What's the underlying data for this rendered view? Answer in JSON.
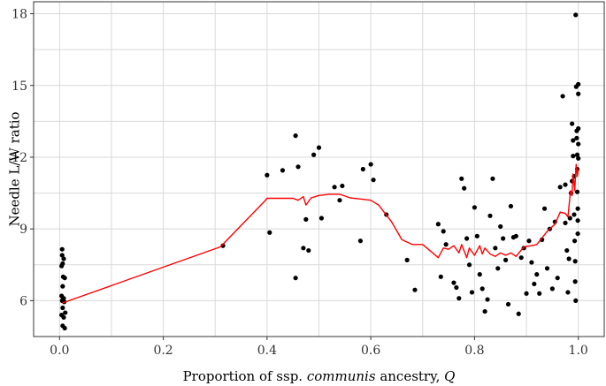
{
  "chart_data": {
    "type": "scatter",
    "title": "",
    "xlabel": {
      "prefix": "Proportion of ssp. ",
      "italic": "communis",
      "middle": " ancestry, ",
      "var": "Q"
    },
    "ylabel": "Needle L/W ratio",
    "xlim": [
      -0.05,
      1.05
    ],
    "ylim": [
      4.5,
      18.5
    ],
    "grid": true,
    "x_ticks": [
      0.0,
      0.2,
      0.4,
      0.6,
      0.8,
      1.0
    ],
    "x_tick_labels": [
      "0.0",
      "0.2",
      "0.4",
      "0.6",
      "0.8",
      "1.0"
    ],
    "y_ticks": [
      6,
      9,
      12,
      15,
      18
    ],
    "y_tick_labels": [
      "6",
      "9",
      "12",
      "15",
      "18"
    ],
    "series": [
      {
        "name": "observations",
        "kind": "scatter",
        "color": "#000000",
        "points": [
          [
            0.005,
            8.15
          ],
          [
            0.005,
            7.9
          ],
          [
            0.008,
            7.75
          ],
          [
            0.006,
            7.55
          ],
          [
            0.004,
            7.45
          ],
          [
            0.007,
            7.0
          ],
          [
            0.01,
            6.95
          ],
          [
            0.006,
            6.6
          ],
          [
            0.004,
            6.2
          ],
          [
            0.008,
            6.1
          ],
          [
            0.005,
            6.0
          ],
          [
            0.009,
            5.95
          ],
          [
            0.006,
            5.7
          ],
          [
            0.011,
            5.5
          ],
          [
            0.004,
            5.4
          ],
          [
            0.008,
            5.3
          ],
          [
            0.006,
            4.95
          ],
          [
            0.01,
            4.85
          ],
          [
            0.315,
            8.3
          ],
          [
            0.4,
            11.25
          ],
          [
            0.405,
            8.85
          ],
          [
            0.43,
            11.45
          ],
          [
            0.455,
            12.9
          ],
          [
            0.46,
            11.6
          ],
          [
            0.455,
            6.95
          ],
          [
            0.47,
            8.2
          ],
          [
            0.48,
            8.1
          ],
          [
            0.475,
            9.4
          ],
          [
            0.49,
            12.1
          ],
          [
            0.5,
            12.4
          ],
          [
            0.505,
            9.45
          ],
          [
            0.53,
            10.75
          ],
          [
            0.54,
            10.2
          ],
          [
            0.545,
            10.8
          ],
          [
            0.58,
            8.5
          ],
          [
            0.585,
            11.5
          ],
          [
            0.6,
            11.7
          ],
          [
            0.605,
            11.05
          ],
          [
            0.63,
            9.6
          ],
          [
            0.67,
            7.7
          ],
          [
            0.685,
            6.45
          ],
          [
            0.73,
            9.2
          ],
          [
            0.74,
            8.9
          ],
          [
            0.735,
            7.0
          ],
          [
            0.745,
            8.35
          ],
          [
            0.76,
            6.75
          ],
          [
            0.765,
            6.55
          ],
          [
            0.77,
            6.1
          ],
          [
            0.775,
            11.1
          ],
          [
            0.78,
            10.7
          ],
          [
            0.785,
            8.6
          ],
          [
            0.79,
            7.5
          ],
          [
            0.795,
            6.35
          ],
          [
            0.8,
            9.9
          ],
          [
            0.805,
            8.7
          ],
          [
            0.81,
            7.1
          ],
          [
            0.815,
            6.5
          ],
          [
            0.82,
            5.55
          ],
          [
            0.825,
            6.05
          ],
          [
            0.83,
            9.55
          ],
          [
            0.835,
            11.1
          ],
          [
            0.84,
            8.2
          ],
          [
            0.845,
            7.35
          ],
          [
            0.85,
            9.1
          ],
          [
            0.855,
            8.6
          ],
          [
            0.86,
            7.7
          ],
          [
            0.865,
            5.85
          ],
          [
            0.87,
            9.95
          ],
          [
            0.875,
            8.65
          ],
          [
            0.88,
            8.7
          ],
          [
            0.885,
            5.45
          ],
          [
            0.89,
            7.8
          ],
          [
            0.895,
            8.2
          ],
          [
            0.9,
            6.3
          ],
          [
            0.905,
            8.5
          ],
          [
            0.91,
            7.6
          ],
          [
            0.915,
            6.7
          ],
          [
            0.92,
            7.1
          ],
          [
            0.925,
            6.3
          ],
          [
            0.93,
            8.55
          ],
          [
            0.935,
            9.85
          ],
          [
            0.94,
            7.35
          ],
          [
            0.945,
            9.0
          ],
          [
            0.95,
            6.5
          ],
          [
            0.955,
            9.3
          ],
          [
            0.96,
            6.95
          ],
          [
            0.965,
            10.75
          ],
          [
            0.97,
            14.55
          ],
          [
            0.975,
            10.85
          ],
          [
            0.975,
            9.25
          ],
          [
            0.978,
            8.1
          ],
          [
            0.98,
            6.35
          ],
          [
            0.982,
            7.75
          ],
          [
            0.984,
            9.45
          ],
          [
            0.986,
            10.5
          ],
          [
            0.988,
            11.0
          ],
          [
            0.988,
            13.4
          ],
          [
            0.99,
            12.7
          ],
          [
            0.99,
            12.05
          ],
          [
            0.992,
            11.2
          ],
          [
            0.992,
            9.6
          ],
          [
            0.993,
            8.5
          ],
          [
            0.994,
            7.65
          ],
          [
            0.994,
            6.8
          ],
          [
            0.995,
            6.0
          ],
          [
            0.995,
            17.95
          ],
          [
            0.996,
            14.95
          ],
          [
            0.997,
            13.1
          ],
          [
            0.997,
            12.8
          ],
          [
            0.998,
            12.1
          ],
          [
            0.998,
            11.5
          ],
          [
            0.998,
            10.55
          ],
          [
            0.999,
            9.85
          ],
          [
            0.999,
            9.35
          ],
          [
            0.999,
            8.8
          ],
          [
            1.0,
            15.05
          ],
          [
            1.0,
            14.65
          ],
          [
            1.0,
            13.2
          ],
          [
            1.0,
            12.55
          ],
          [
            1.0,
            11.95
          ]
        ]
      },
      {
        "name": "smoothed trend",
        "kind": "line",
        "color": "#ff0000",
        "points": [
          [
            0.005,
            5.9
          ],
          [
            0.31,
            8.25
          ],
          [
            0.395,
            10.15
          ],
          [
            0.4,
            10.28
          ],
          [
            0.45,
            10.28
          ],
          [
            0.46,
            10.2
          ],
          [
            0.47,
            10.35
          ],
          [
            0.475,
            10.0
          ],
          [
            0.485,
            10.3
          ],
          [
            0.5,
            10.4
          ],
          [
            0.52,
            10.45
          ],
          [
            0.54,
            10.45
          ],
          [
            0.56,
            10.3
          ],
          [
            0.58,
            10.25
          ],
          [
            0.6,
            10.2
          ],
          [
            0.615,
            10.0
          ],
          [
            0.64,
            9.3
          ],
          [
            0.66,
            8.55
          ],
          [
            0.68,
            8.35
          ],
          [
            0.7,
            8.35
          ],
          [
            0.73,
            7.8
          ],
          [
            0.74,
            8.2
          ],
          [
            0.75,
            8.15
          ],
          [
            0.76,
            8.3
          ],
          [
            0.77,
            8.0
          ],
          [
            0.775,
            8.35
          ],
          [
            0.785,
            7.8
          ],
          [
            0.79,
            8.2
          ],
          [
            0.8,
            7.9
          ],
          [
            0.81,
            8.3
          ],
          [
            0.815,
            7.95
          ],
          [
            0.82,
            8.2
          ],
          [
            0.83,
            7.95
          ],
          [
            0.84,
            7.85
          ],
          [
            0.85,
            8.0
          ],
          [
            0.86,
            7.9
          ],
          [
            0.87,
            8.0
          ],
          [
            0.88,
            7.85
          ],
          [
            0.895,
            8.25
          ],
          [
            0.91,
            8.3
          ],
          [
            0.92,
            8.35
          ],
          [
            0.94,
            8.9
          ],
          [
            0.955,
            9.2
          ],
          [
            0.965,
            9.7
          ],
          [
            0.975,
            9.65
          ],
          [
            0.98,
            9.5
          ],
          [
            0.985,
            10.6
          ],
          [
            0.988,
            10.4
          ],
          [
            0.99,
            11.3
          ],
          [
            0.993,
            10.6
          ],
          [
            0.996,
            11.7
          ],
          [
            0.998,
            11.2
          ],
          [
            1.0,
            11.5
          ]
        ]
      }
    ]
  }
}
